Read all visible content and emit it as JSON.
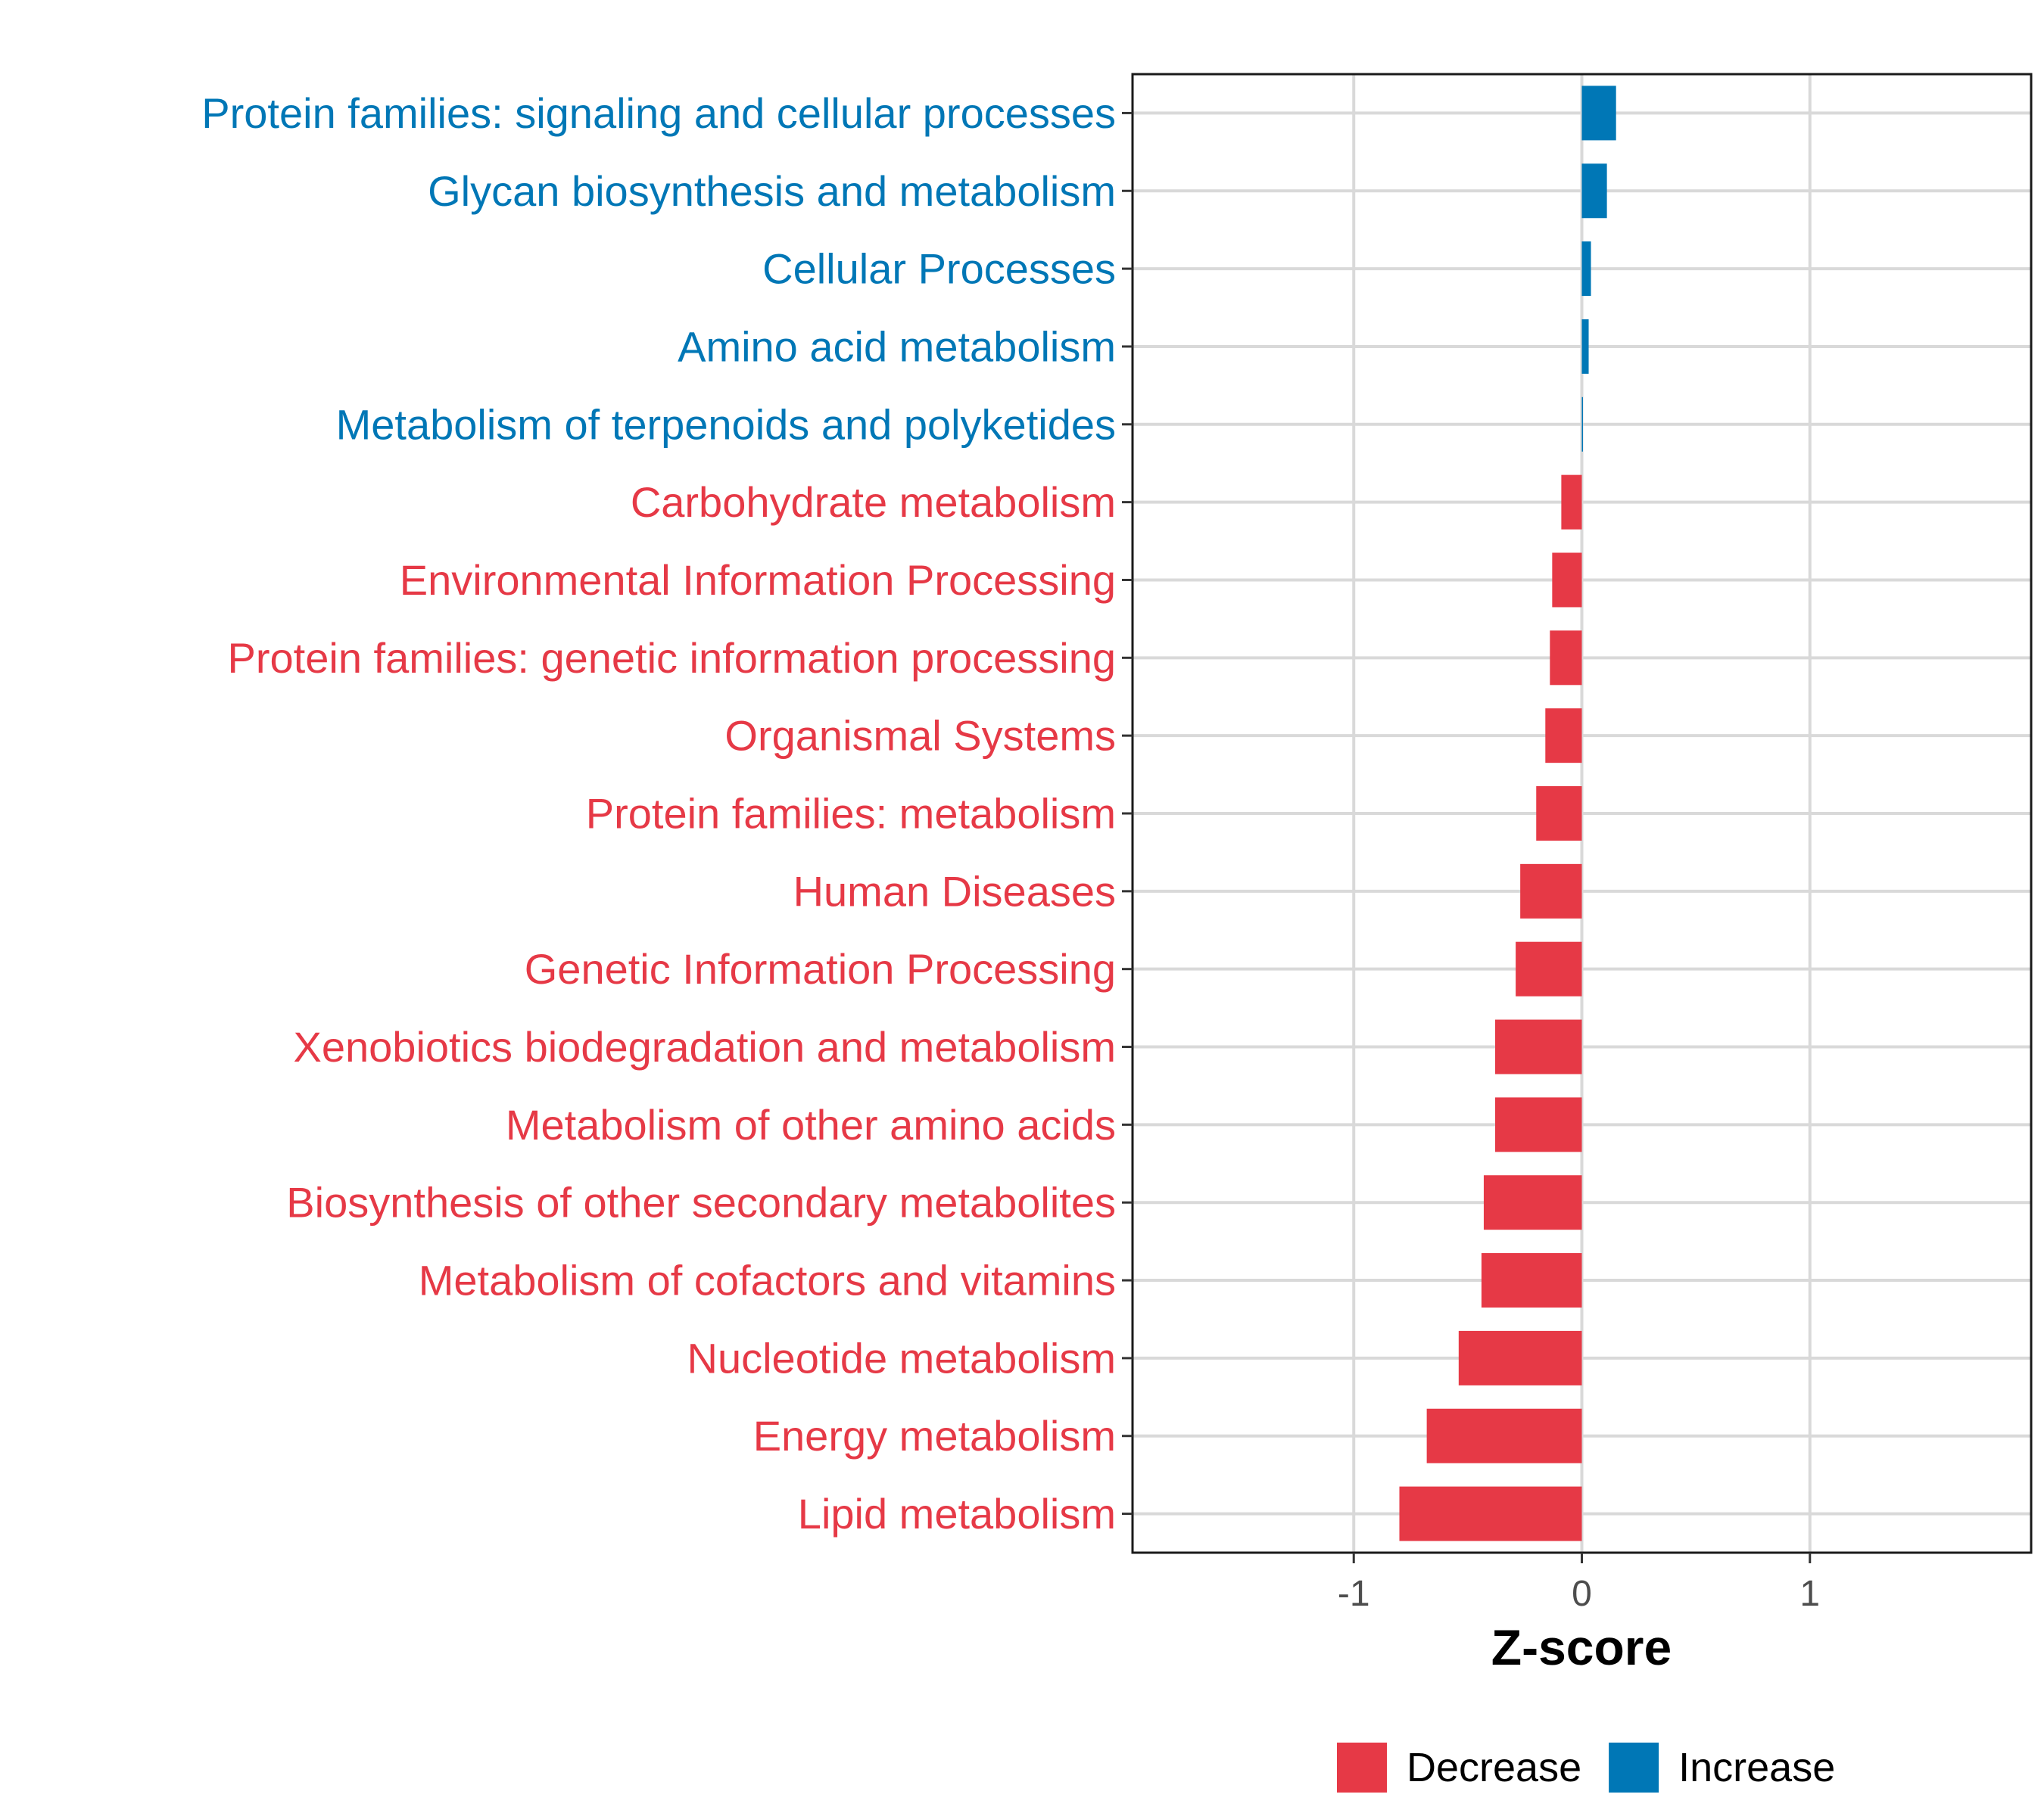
{
  "chart_data": {
    "type": "bar",
    "orientation": "horizontal",
    "xlabel": "Z-score",
    "xlim": [
      -1.97,
      1.97
    ],
    "xticks": [
      -1,
      0,
      1
    ],
    "xtick_labels": [
      "-1",
      "0",
      "1"
    ],
    "grid": true,
    "legend_position": "bottom",
    "colors": {
      "Decrease": "#e63946",
      "Increase": "#0077b6"
    },
    "legend": [
      {
        "key": "Decrease",
        "label": "Decrease"
      },
      {
        "key": "Increase",
        "label": "Increase"
      }
    ],
    "categories": [
      "Protein families: signaling and cellular processes",
      "Glycan biosynthesis and metabolism",
      "Cellular Processes",
      "Amino acid metabolism",
      "Metabolism of terpenoids and polyketides",
      "Carbohydrate metabolism",
      "Environmental Information Processing",
      "Protein families: genetic information processing",
      "Organismal Systems",
      "Protein families: metabolism",
      "Human Diseases",
      "Genetic Information Processing",
      "Xenobiotics biodegradation and metabolism",
      "Metabolism of other amino acids",
      "Biosynthesis of other secondary metabolites",
      "Metabolism of cofactors and vitamins",
      "Nucleotide metabolism",
      "Energy metabolism",
      "Lipid metabolism"
    ],
    "values": [
      0.15,
      0.11,
      0.04,
      0.03,
      0.005,
      -0.09,
      -0.13,
      -0.14,
      -0.16,
      -0.2,
      -0.27,
      -0.29,
      -0.38,
      -0.38,
      -0.43,
      -0.44,
      -0.54,
      -0.68,
      -0.8
    ],
    "groups": [
      "Increase",
      "Increase",
      "Increase",
      "Increase",
      "Increase",
      "Decrease",
      "Decrease",
      "Decrease",
      "Decrease",
      "Decrease",
      "Decrease",
      "Decrease",
      "Decrease",
      "Decrease",
      "Decrease",
      "Decrease",
      "Decrease",
      "Decrease",
      "Decrease"
    ]
  }
}
